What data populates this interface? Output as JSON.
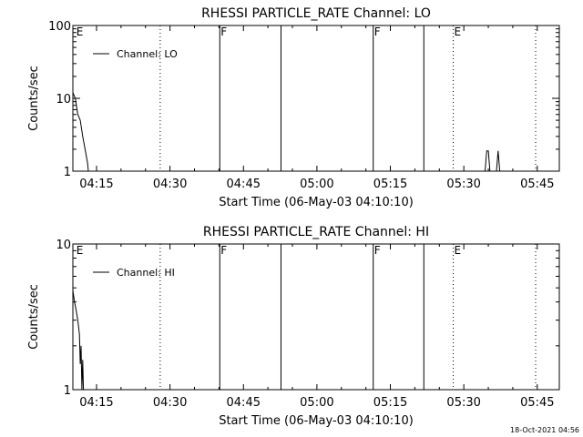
{
  "timestamp": "18-Oct-2021 04:56",
  "chart_data": [
    {
      "type": "line",
      "title": "RHESSI PARTICLE_RATE Channel: LO",
      "xlabel": "Start Time (06-May-03 04:10:10)",
      "ylabel": "Counts/sec",
      "yscale": "log",
      "ylim": [
        1,
        100
      ],
      "yticks": [
        {
          "value": 1,
          "label": "1"
        },
        {
          "value": 10,
          "label": "10"
        },
        {
          "value": 100,
          "label": "100"
        }
      ],
      "xlim": [
        "04:10:10",
        "05:49:30"
      ],
      "xticks": [
        "04:15",
        "04:30",
        "04:45",
        "05:00",
        "05:15",
        "05:30",
        "05:45"
      ],
      "legend": {
        "label": "Channel: LO",
        "position": "top-left"
      },
      "markers": [
        {
          "time": "04:10:40",
          "style": "label",
          "label": "E"
        },
        {
          "time": "04:28:00",
          "style": "dotted",
          "label": ""
        },
        {
          "time": "04:40:10",
          "style": "solid",
          "label": "F"
        },
        {
          "time": "04:52:40",
          "style": "solid",
          "label": ""
        },
        {
          "time": "05:11:30",
          "style": "solid",
          "label": "F"
        },
        {
          "time": "05:21:50",
          "style": "solid",
          "label": ""
        },
        {
          "time": "05:27:50",
          "style": "dotted",
          "label": "E"
        },
        {
          "time": "05:44:40",
          "style": "dotted",
          "label": ""
        }
      ],
      "series": [
        {
          "segments": [
            [
              [
                "04:10:10",
                12
              ],
              [
                "04:10:40",
                10
              ],
              [
                "04:11:10",
                6
              ],
              [
                "04:11:40",
                5
              ],
              [
                "04:12:10",
                3
              ],
              [
                "04:12:40",
                2
              ],
              [
                "04:13:10",
                1.3
              ],
              [
                "04:13:20",
                1
              ]
            ],
            [
              [
                "05:34:20",
                1
              ],
              [
                "05:34:40",
                1.9
              ],
              [
                "05:35:00",
                1.9
              ],
              [
                "05:35:20",
                1
              ]
            ],
            [
              [
                "05:36:40",
                1
              ],
              [
                "05:37:00",
                1.9
              ],
              [
                "05:37:20",
                1
              ]
            ]
          ]
        }
      ]
    },
    {
      "type": "line",
      "title": "RHESSI PARTICLE_RATE Channel: HI",
      "xlabel": "Start Time (06-May-03 04:10:10)",
      "ylabel": "Counts/sec",
      "yscale": "log",
      "ylim": [
        1,
        10
      ],
      "yticks": [
        {
          "value": 1,
          "label": "1"
        },
        {
          "value": 10,
          "label": "10"
        }
      ],
      "xlim": [
        "04:10:10",
        "05:49:30"
      ],
      "xticks": [
        "04:15",
        "04:30",
        "04:45",
        "05:00",
        "05:15",
        "05:30",
        "05:45"
      ],
      "legend": {
        "label": "Channel: HI",
        "position": "top-left"
      },
      "markers": [
        {
          "time": "04:10:40",
          "style": "label",
          "label": "E"
        },
        {
          "time": "04:28:00",
          "style": "dotted",
          "label": ""
        },
        {
          "time": "04:40:10",
          "style": "solid",
          "label": "F"
        },
        {
          "time": "04:52:40",
          "style": "solid",
          "label": ""
        },
        {
          "time": "05:11:30",
          "style": "solid",
          "label": "F"
        },
        {
          "time": "05:21:50",
          "style": "solid",
          "label": ""
        },
        {
          "time": "05:27:50",
          "style": "dotted",
          "label": "E"
        },
        {
          "time": "05:44:40",
          "style": "dotted",
          "label": ""
        }
      ],
      "series": [
        {
          "segments": [
            [
              [
                "04:10:10",
                4.8
              ],
              [
                "04:10:30",
                4.0
              ],
              [
                "04:10:50",
                3.5
              ],
              [
                "04:11:10",
                3.0
              ],
              [
                "04:11:30",
                2.4
              ],
              [
                "04:11:40",
                1.5
              ],
              [
                "04:11:50",
                2.0
              ],
              [
                "04:12:00",
                1.0
              ],
              [
                "04:12:10",
                1.6
              ],
              [
                "04:12:20",
                1.0
              ]
            ]
          ]
        }
      ]
    }
  ]
}
